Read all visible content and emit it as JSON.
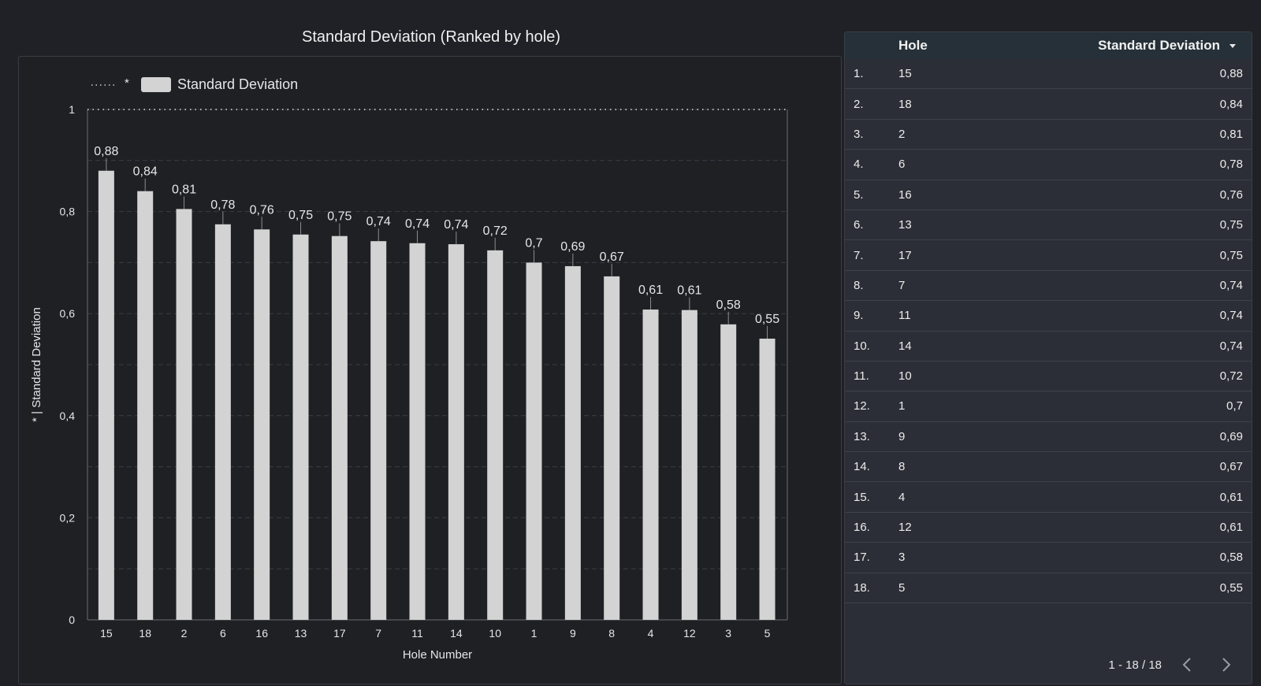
{
  "chart": {
    "title": "Standard Deviation (Ranked by hole)",
    "legend": [
      {
        "symbol": "*",
        "label": "Standard Deviation"
      }
    ]
  },
  "chart_data": {
    "type": "bar",
    "title": "Standard Deviation (Ranked by hole)",
    "xlabel": "Hole Number",
    "ylabel": "* | Standard Deviation",
    "ylim": [
      0,
      1
    ],
    "yticks": [
      "0",
      "0,2",
      "0,4",
      "0,6",
      "0,8",
      "1"
    ],
    "categories": [
      "15",
      "18",
      "2",
      "6",
      "16",
      "13",
      "17",
      "7",
      "11",
      "14",
      "10",
      "1",
      "9",
      "8",
      "4",
      "12",
      "3",
      "5"
    ],
    "series": [
      {
        "name": "Standard Deviation",
        "values": [
          0.88,
          0.84,
          0.805,
          0.775,
          0.765,
          0.755,
          0.752,
          0.742,
          0.738,
          0.736,
          0.724,
          0.7,
          0.693,
          0.673,
          0.608,
          0.607,
          0.579,
          0.551
        ],
        "labels": [
          "0,88",
          "0,84",
          "0,81",
          "0,78",
          "0,76",
          "0,75",
          "0,75",
          "0,74",
          "0,74",
          "0,74",
          "0,72",
          "0,7",
          "0,69",
          "0,67",
          "0,61",
          "0,61",
          "0,58",
          "0,55"
        ]
      }
    ],
    "reference_line": {
      "name": "*",
      "value": 1,
      "style": "dotted"
    },
    "grid": true,
    "legend_position": "top-left"
  },
  "table": {
    "columns": {
      "hole": "Hole",
      "std": "Standard Deviation"
    },
    "rows": [
      {
        "index": "1.",
        "hole": "15",
        "value": "0,88"
      },
      {
        "index": "2.",
        "hole": "18",
        "value": "0,84"
      },
      {
        "index": "3.",
        "hole": "2",
        "value": "0,81"
      },
      {
        "index": "4.",
        "hole": "6",
        "value": "0,78"
      },
      {
        "index": "5.",
        "hole": "16",
        "value": "0,76"
      },
      {
        "index": "6.",
        "hole": "13",
        "value": "0,75"
      },
      {
        "index": "7.",
        "hole": "17",
        "value": "0,75"
      },
      {
        "index": "8.",
        "hole": "7",
        "value": "0,74"
      },
      {
        "index": "9.",
        "hole": "11",
        "value": "0,74"
      },
      {
        "index": "10.",
        "hole": "14",
        "value": "0,74"
      },
      {
        "index": "11.",
        "hole": "10",
        "value": "0,72"
      },
      {
        "index": "12.",
        "hole": "1",
        "value": "0,7"
      },
      {
        "index": "13.",
        "hole": "9",
        "value": "0,69"
      },
      {
        "index": "14.",
        "hole": "8",
        "value": "0,67"
      },
      {
        "index": "15.",
        "hole": "4",
        "value": "0,61"
      },
      {
        "index": "16.",
        "hole": "12",
        "value": "0,61"
      },
      {
        "index": "17.",
        "hole": "3",
        "value": "0,58"
      },
      {
        "index": "18.",
        "hole": "5",
        "value": "0,55"
      }
    ],
    "pagination": "1 - 18 / 18"
  },
  "colors": {
    "bar": "#d3d3d3",
    "background": "#1f2126",
    "table_header": "#253038"
  }
}
